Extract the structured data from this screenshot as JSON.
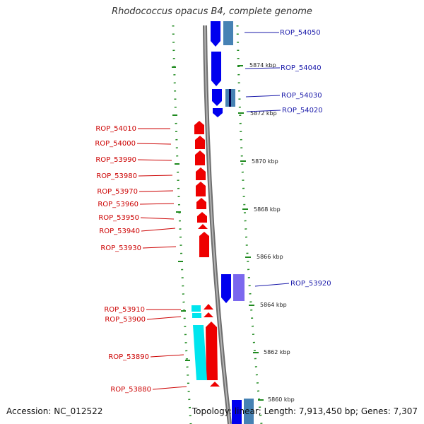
{
  "title": "Rhodococcus opacus B4, complete genome",
  "footer": {
    "accession": "Accession: NC_012522",
    "topology": "Topology: linear; Length: 7,913,450 bp; Genes: 7,307"
  },
  "colors": {
    "forward": "#0000ee",
    "forward_label": "#1a1aaa",
    "reverse": "#ee0000",
    "reverse_label": "#cc0000",
    "cds_blue": "#4682b4",
    "cds_violet": "#7b68ee",
    "cds_cyan": "#00e5ee",
    "backbone": "#888888",
    "scale": "#1f8a1f"
  },
  "scale_labels": [
    "5874 kbp",
    "5872 kbp",
    "5870 kbp",
    "5868 kbp",
    "5866 kbp",
    "5864 kbp",
    "5862 kbp",
    "5860 kbp"
  ],
  "gene_labels": {
    "forward": [
      "ROP_54050",
      "ROP_54040",
      "ROP_54030",
      "ROP_54020",
      "ROP_53920"
    ],
    "reverse": [
      "ROP_54010",
      "ROP_54000",
      "ROP_53990",
      "ROP_53980",
      "ROP_53970",
      "ROP_53960",
      "ROP_53950",
      "ROP_53940",
      "ROP_53930",
      "ROP_53910",
      "ROP_53900",
      "ROP_53890",
      "ROP_53880"
    ]
  }
}
